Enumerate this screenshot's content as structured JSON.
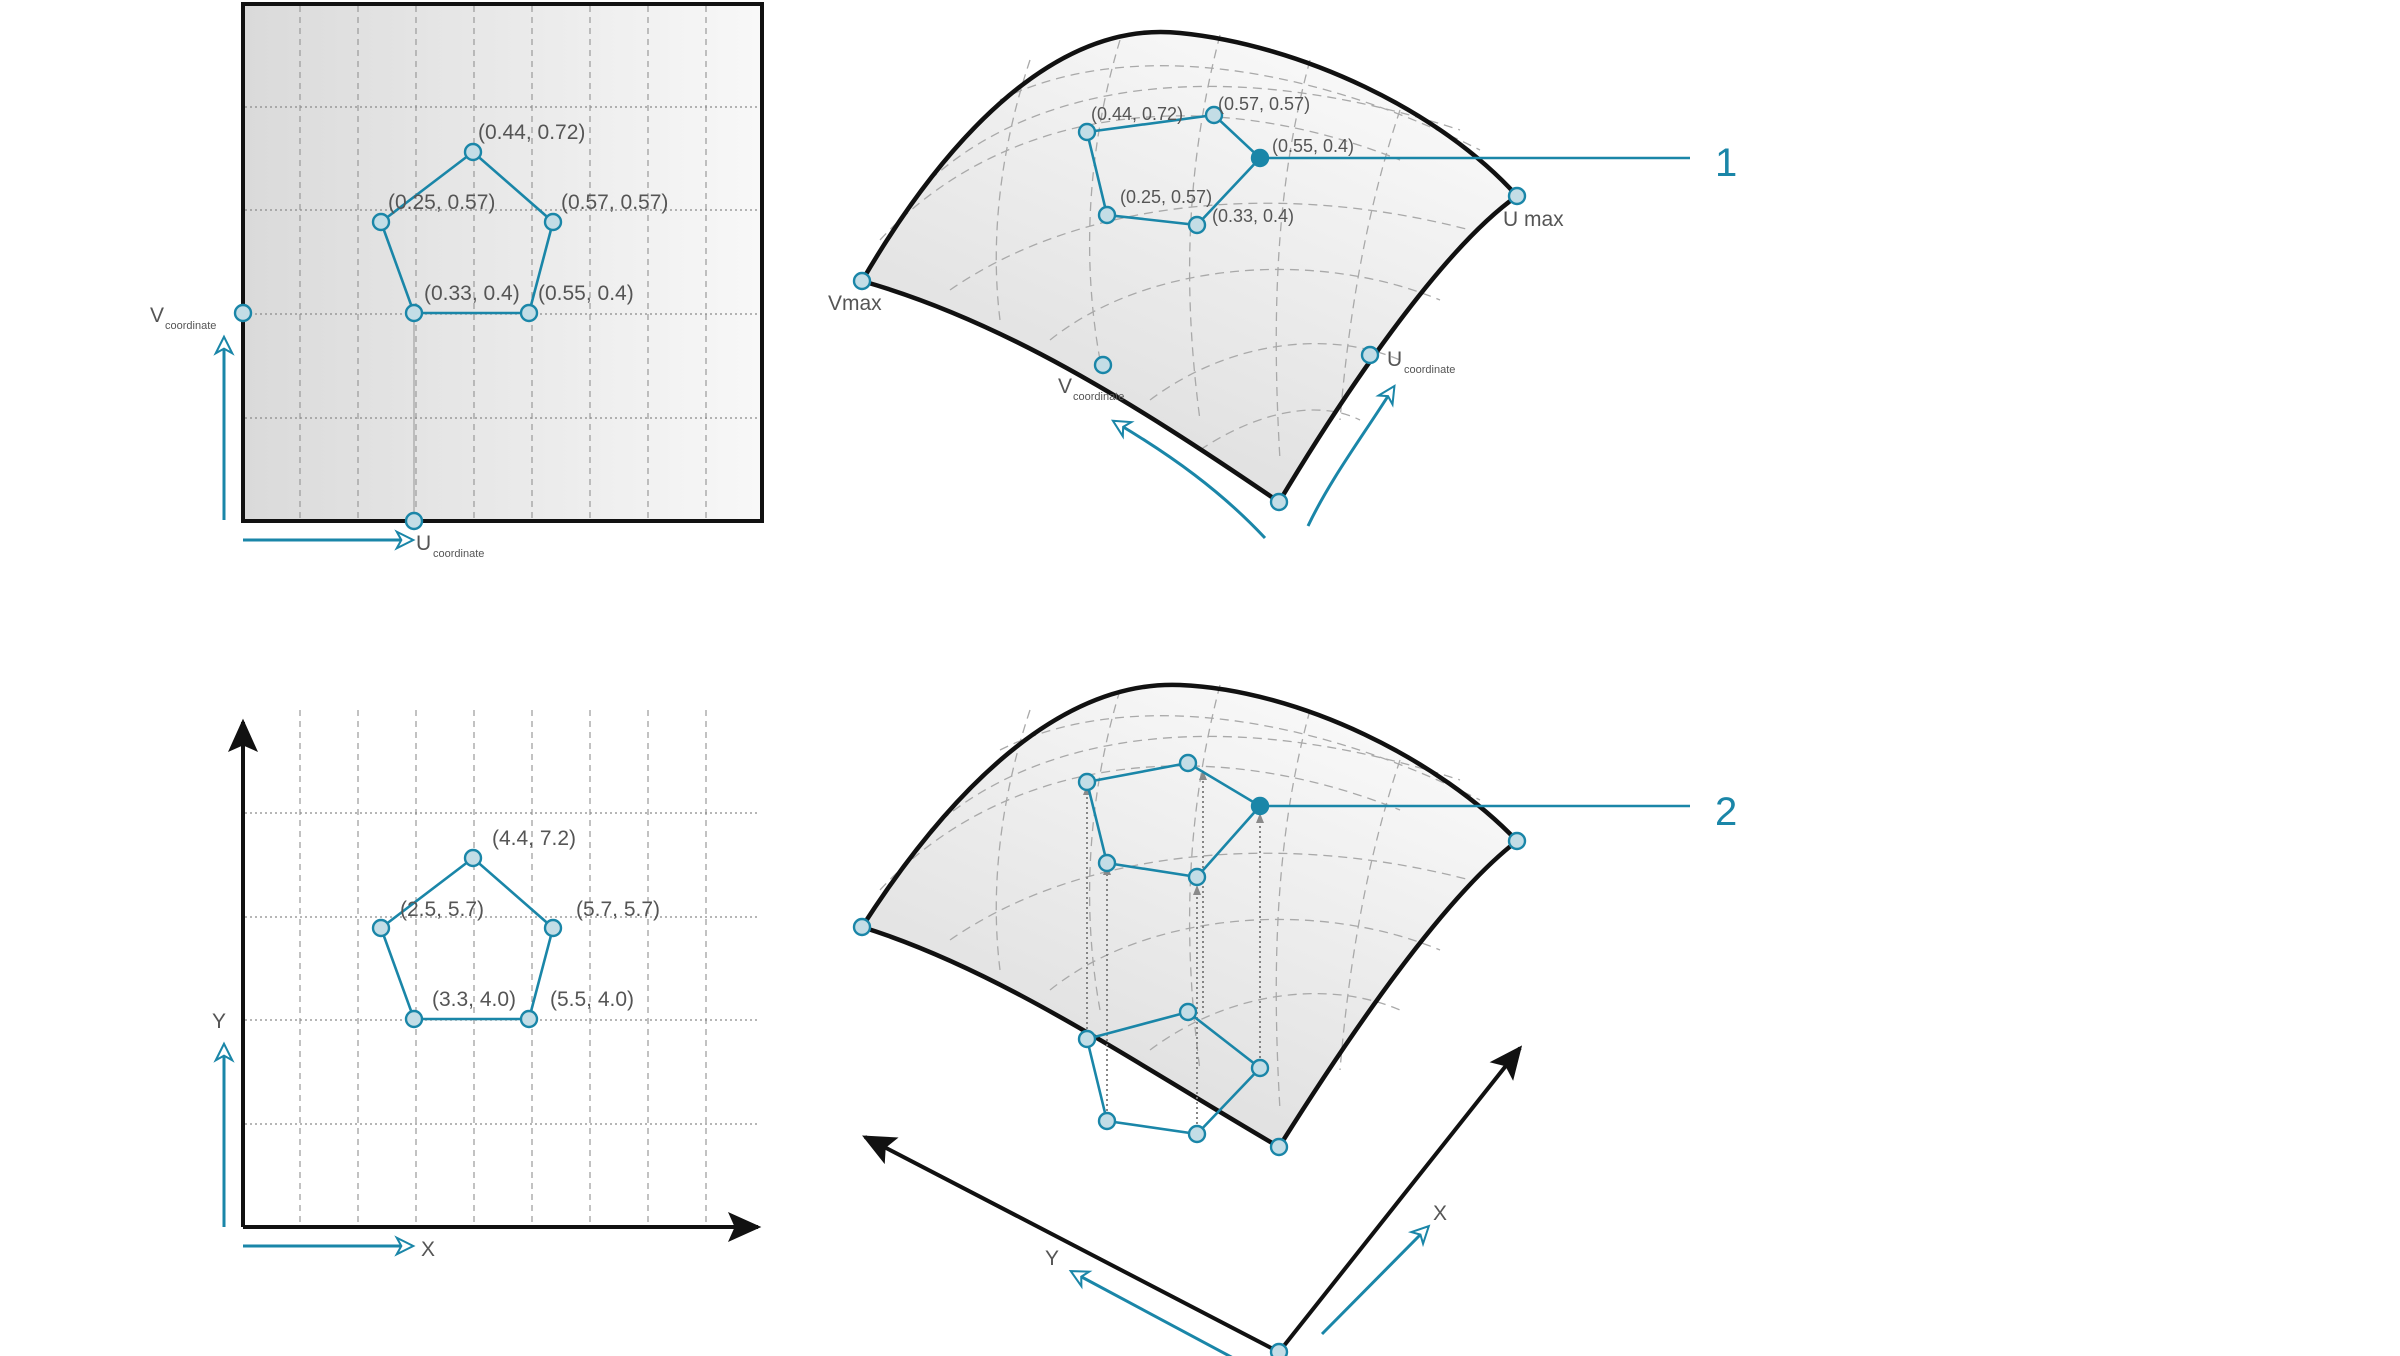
{
  "callouts": {
    "one": "1",
    "two": "2"
  },
  "uv_panel": {
    "v_label": "V",
    "v_sub": "coordinate",
    "u_label": "U",
    "u_sub": "coordinate",
    "points": [
      "(0.44, 0.72)",
      "(0.25, 0.57)",
      "(0.57, 0.57)",
      "(0.33, 0.4)",
      "(0.55, 0.4)"
    ]
  },
  "surface_top": {
    "vmax_label": "Vmax",
    "umax_label": "U max",
    "u_label": "U",
    "u_sub": "coordinate",
    "v_label": "V",
    "v_sub": "coordinate",
    "points": [
      "(0.44, 0.72)",
      "(0.57, 0.57)",
      "(0.55, 0.4)",
      "(0.25, 0.57)",
      "(0.33, 0.4)"
    ]
  },
  "xy_panel": {
    "x_label": "X",
    "y_label": "Y",
    "points": [
      "(4.4, 7.2)",
      "(2.5, 5.7)",
      "(5.7, 5.7)",
      "(3.3, 4.0)",
      "(5.5, 4.0)"
    ]
  },
  "surface_bottom": {
    "x_label": "X",
    "y_label": "Y"
  },
  "colors": {
    "accent": "#1a86a8",
    "edge": "#111111",
    "surface_light": "#f4f4f4",
    "surface_dark": "#dcdcdc",
    "point_fill": "#c3dde6"
  }
}
